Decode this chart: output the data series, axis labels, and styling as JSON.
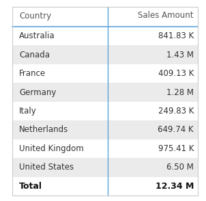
{
  "col1_header": "Country",
  "col2_header": "Sales Amount",
  "rows": [
    {
      "country": "Australia",
      "sales": "841.83 K"
    },
    {
      "country": "Canada",
      "sales": "1.43 M"
    },
    {
      "country": "France",
      "sales": "409.13 K"
    },
    {
      "country": "Germany",
      "sales": "1.28 M"
    },
    {
      "country": "Italy",
      "sales": "249.83 K"
    },
    {
      "country": "Netherlands",
      "sales": "649.74 K"
    },
    {
      "country": "United Kingdom",
      "sales": "975.41 K"
    },
    {
      "country": "United States",
      "sales": "6.50 M"
    }
  ],
  "total_label": "Total",
  "total_value": "12.34 M",
  "bg_color": "#ffffff",
  "stripe_color": "#ebebeb",
  "header_text_color": "#555555",
  "row_text_color": "#333333",
  "total_text_color": "#111111",
  "divider_color": "#5ba3d9",
  "border_color": "#cccccc",
  "font_size": 8.5,
  "header_font_size": 8.5
}
